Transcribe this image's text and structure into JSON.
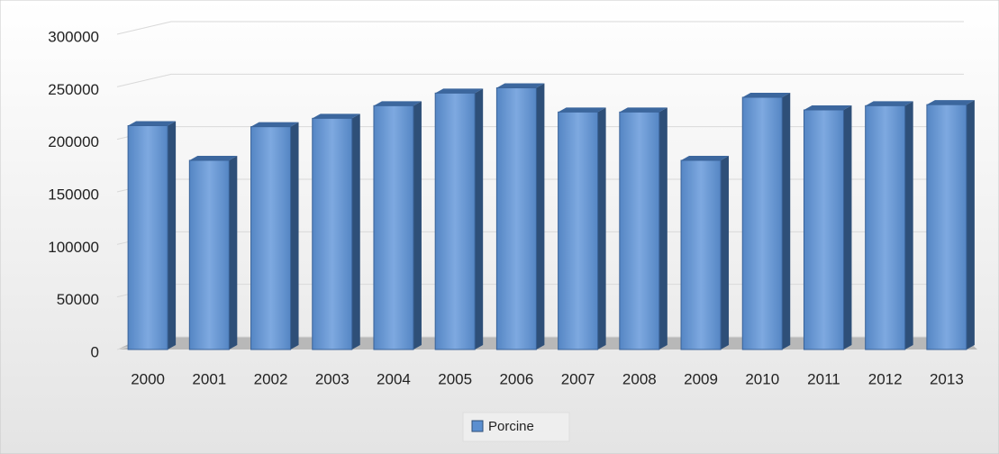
{
  "chart_data": {
    "type": "bar3d",
    "categories": [
      "2000",
      "2001",
      "2002",
      "2003",
      "2004",
      "2005",
      "2006",
      "2007",
      "2008",
      "2009",
      "2010",
      "2011",
      "2012",
      "2013"
    ],
    "series": [
      {
        "name": "Porcine",
        "color": "#5b8fd0",
        "values": [
          213000,
          180000,
          212000,
          220000,
          232000,
          244000,
          249000,
          226000,
          226000,
          180000,
          240000,
          228000,
          232000,
          233000
        ]
      }
    ],
    "ylim": [
      0,
      300000
    ],
    "yticks": [
      0,
      50000,
      100000,
      150000,
      200000,
      250000,
      300000
    ],
    "grid": true,
    "legend": "bottom"
  }
}
